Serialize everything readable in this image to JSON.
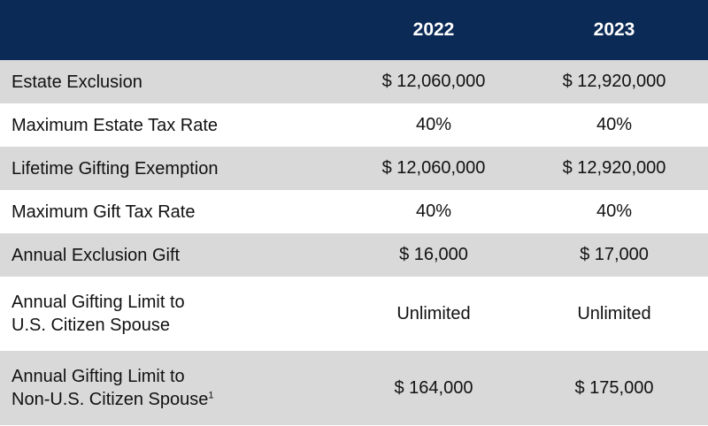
{
  "header": {
    "years": [
      "2022",
      "2023"
    ]
  },
  "rows": [
    {
      "label_lines": [
        "Estate Exclusion"
      ],
      "v2022": "$ 12,060,000",
      "v2023": "$ 12,920,000"
    },
    {
      "label_lines": [
        "Maximum Estate Tax Rate"
      ],
      "v2022": "40%",
      "v2023": "40%"
    },
    {
      "label_lines": [
        "Lifetime Gifting Exemption"
      ],
      "v2022": "$ 12,060,000",
      "v2023": "$ 12,920,000"
    },
    {
      "label_lines": [
        "Maximum Gift Tax Rate"
      ],
      "v2022": "40%",
      "v2023": "40%"
    },
    {
      "label_lines": [
        "Annual Exclusion Gift"
      ],
      "v2022": "$ 16,000",
      "v2023": "$ 17,000"
    },
    {
      "label_lines": [
        "Annual Gifting Limit to",
        "U.S. Citizen Spouse"
      ],
      "v2022": "Unlimited",
      "v2023": "Unlimited"
    },
    {
      "label_lines": [
        "Annual Gifting Limit to",
        "Non-U.S. Citizen Spouse"
      ],
      "footnote": "1",
      "v2022": "$ 164,000",
      "v2023": "$ 175,000"
    }
  ],
  "colors": {
    "header_bg": "#0b2a55",
    "header_text": "#ffffff",
    "row_shade": "#d9d9d9",
    "row_plain": "#ffffff"
  }
}
